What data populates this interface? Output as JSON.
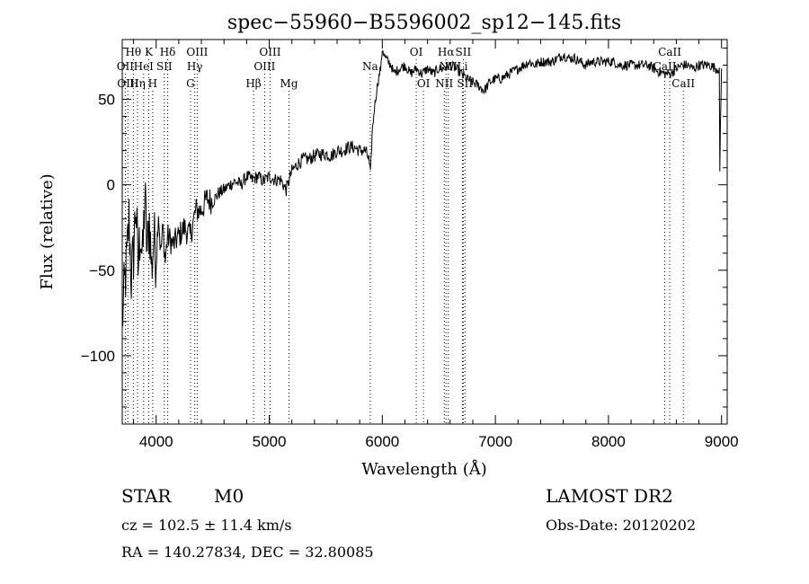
{
  "chart_data": {
    "type": "line",
    "title": "spec−55960−B5596002_sp12−145.fits",
    "xlabel": "Wavelength (Å)",
    "ylabel": "Flux (relative)",
    "xlim": [
      3700,
      9050
    ],
    "ylim": [
      -140,
      85
    ],
    "xticks": [
      {
        "value": 4000,
        "label": "4000"
      },
      {
        "value": 5000,
        "label": "5000"
      },
      {
        "value": 6000,
        "label": "6000"
      },
      {
        "value": 7000,
        "label": "7000"
      },
      {
        "value": 8000,
        "label": "8000"
      },
      {
        "value": 9000,
        "label": "9000"
      }
    ],
    "yticks": [
      {
        "value": 50,
        "label": "50"
      },
      {
        "value": 0,
        "label": "0"
      },
      {
        "value": -50,
        "label": "−50"
      },
      {
        "value": -100,
        "label": "−100"
      }
    ],
    "grid": false,
    "series": [
      {
        "x": [
          3700,
          3720,
          3740,
          3760,
          3780,
          3800,
          3820,
          3840,
          3860,
          3880,
          3900,
          3920,
          3940,
          3960,
          3980,
          4000,
          4020,
          4040,
          4060,
          4080,
          4100,
          4150,
          4200,
          4250,
          4300,
          4350,
          4400,
          4450,
          4500,
          4550,
          4600,
          4650,
          4700,
          4750,
          4800,
          4850,
          4900,
          4950,
          5000,
          5050,
          5100,
          5150,
          5200,
          5250,
          5300,
          5350,
          5400,
          5450,
          5500,
          5550,
          5600,
          5650,
          5700,
          5750,
          5800,
          5850,
          5880,
          5895,
          5910,
          5930,
          5960,
          5990,
          6000,
          6020,
          6050,
          6080,
          6100,
          6150,
          6200,
          6250,
          6300,
          6350,
          6400,
          6450,
          6500,
          6550,
          6600,
          6650,
          6700,
          6750,
          6800,
          6850,
          6900,
          6950,
          7000,
          7050,
          7100,
          7150,
          7200,
          7250,
          7300,
          7350,
          7400,
          7450,
          7500,
          7550,
          7600,
          7650,
          7700,
          7750,
          7800,
          7850,
          7900,
          7950,
          8000,
          8050,
          8100,
          8150,
          8200,
          8250,
          8300,
          8350,
          8400,
          8450,
          8500,
          8550,
          8600,
          8650,
          8700,
          8750,
          8800,
          8850,
          8900,
          8950,
          8980,
          8985,
          8990,
          9000
        ],
        "y": [
          -80,
          -60,
          -45,
          -20,
          -55,
          -40,
          -10,
          -50,
          -25,
          -45,
          -5,
          -40,
          -20,
          -50,
          -30,
          -45,
          -15,
          -40,
          -25,
          -45,
          -30,
          -35,
          -30,
          -25,
          -30,
          -15,
          -15,
          -8,
          -10,
          -5,
          -3,
          0,
          2,
          0,
          5,
          3,
          5,
          2,
          5,
          3,
          3,
          -3,
          8,
          12,
          15,
          15,
          17,
          18,
          18,
          17,
          20,
          20,
          22,
          22,
          20,
          20,
          15,
          5,
          30,
          45,
          60,
          70,
          80,
          75,
          72,
          70,
          65,
          68,
          70,
          65,
          68,
          65,
          68,
          65,
          68,
          68,
          70,
          68,
          65,
          62,
          60,
          58,
          55,
          60,
          62,
          62,
          64,
          66,
          68,
          70,
          72,
          70,
          72,
          72,
          72,
          74,
          76,
          74,
          74,
          72,
          70,
          72,
          72,
          72,
          72,
          72,
          70,
          70,
          70,
          70,
          70,
          70,
          68,
          66,
          65,
          65,
          68,
          70,
          70,
          68,
          70,
          70,
          70,
          68,
          68,
          5,
          35,
          68
        ]
      }
    ],
    "spectral_lines": [
      {
        "wave": 3727,
        "label": "OII",
        "row": 1
      },
      {
        "wave": 3750,
        "label": "OIII",
        "row": 2
      },
      {
        "wave": 3798,
        "label": "Hθ",
        "row": 0
      },
      {
        "wave": 3835,
        "label": "Hη",
        "row": 2
      },
      {
        "wave": 3889,
        "label": "HeI",
        "row": 1
      },
      {
        "wave": 3934,
        "label": "K",
        "row": 0
      },
      {
        "wave": 3969,
        "label": "H",
        "row": 2
      },
      {
        "wave": 4072,
        "label": "SII",
        "row": 1
      },
      {
        "wave": 4102,
        "label": "Hδ",
        "row": 0
      },
      {
        "wave": 4304,
        "label": "G",
        "row": 2
      },
      {
        "wave": 4341,
        "label": "Hγ",
        "row": 1
      },
      {
        "wave": 4363,
        "label": "OIII",
        "row": 0
      },
      {
        "wave": 4861,
        "label": "Hβ",
        "row": 2
      },
      {
        "wave": 4959,
        "label": "OIII",
        "row": 1
      },
      {
        "wave": 5007,
        "label": "OIII",
        "row": 0
      },
      {
        "wave": 5175,
        "label": "Mg",
        "row": 2
      },
      {
        "wave": 5893,
        "label": "Na",
        "row": 1
      },
      {
        "wave": 6300,
        "label": "OI",
        "row": 0
      },
      {
        "wave": 6364,
        "label": "OI",
        "row": 2
      },
      {
        "wave": 6548,
        "label": "NII",
        "row": 2
      },
      {
        "wave": 6563,
        "label": "Hα",
        "row": 0
      },
      {
        "wave": 6583,
        "label": "NII",
        "row": 1
      },
      {
        "wave": 6708,
        "label": "Li",
        "row": 1
      },
      {
        "wave": 6716,
        "label": "SII",
        "row": 0
      },
      {
        "wave": 6731,
        "label": "SII",
        "row": 2
      },
      {
        "wave": 8498,
        "label": "CaII",
        "row": 1
      },
      {
        "wave": 8542,
        "label": "CaII",
        "row": 0
      },
      {
        "wave": 8662,
        "label": "CaII",
        "row": 2
      }
    ]
  },
  "info": {
    "class_label": "STAR",
    "subclass_label": "M0",
    "survey": "LAMOST DR2",
    "redshift_text": "cz = 102.5 ± 11.4 km/s",
    "obs_date": "Obs-Date: 20120202",
    "coords": "RA = 140.27834, DEC =  32.80085"
  }
}
